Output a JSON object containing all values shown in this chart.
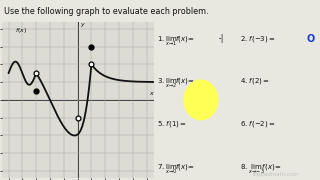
{
  "title": "Use the following graph to evaluate each problem.",
  "title_bg": "#c8c8c8",
  "bg_color": "#e8e8e0",
  "graph_bg": "#dcdcd4",
  "grid_color": "#aaaaaa",
  "curve_color": "#111111",
  "problems": [
    [
      "1. $\\lim_{x\\to 1}\\!f(x) = $",
      "2. $f(-3) = $"
    ],
    [
      "3. $\\lim_{x\\to 2}\\!f(x) = $",
      "4. $f(2) = $"
    ],
    [
      "5. $f(1) = $",
      "6. $f(-2) = $"
    ],
    [
      "7. $\\lim_{x\\to 0}\\!f(x) = $",
      "8. $\\lim_{x\\to -3}\\!f(x) = $"
    ]
  ],
  "answer1": "-|",
  "answer1_color": "#111111",
  "answer2": "O",
  "answer2_color": "#1a3acc",
  "watermark": "flippedmath.com",
  "watermark_color": "#c0c0c0",
  "yellow_circle_color": "#ffff55",
  "pencil_color": "#557733"
}
